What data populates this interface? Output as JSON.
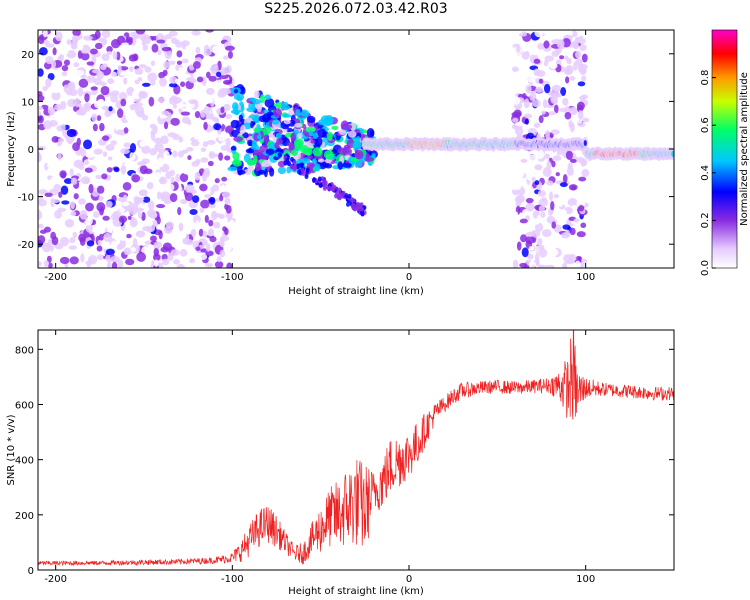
{
  "page_title": "S225.2026.072.03.42.R03",
  "chart_data": [
    {
      "type": "heatmap",
      "title": "S225.2026.072.03.42.R03",
      "xlabel": "Height of straight line (km)",
      "ylabel": "Frequency (Hz)",
      "xlim": [
        -210,
        150
      ],
      "ylim": [
        -25,
        25
      ],
      "xticks": [
        -200,
        -100,
        0,
        100
      ],
      "xtick_labels": [
        "-200",
        "-100",
        "0",
        "100"
      ],
      "yticks": [
        -20,
        -10,
        0,
        10,
        20
      ],
      "ytick_labels": [
        "-20",
        "-10",
        "0",
        "10",
        "20"
      ],
      "colorbar": {
        "label": "Normalized spectral amplitude",
        "range": [
          0,
          1
        ],
        "ticks": [
          0.0,
          0.2,
          0.4,
          0.6,
          0.8
        ],
        "tick_labels": [
          "0.0",
          "0.2",
          "0.4",
          "0.6",
          "0.8"
        ],
        "colors": [
          "#ffffff",
          "#e6ccff",
          "#8a2be2",
          "#0000ff",
          "#00c8ff",
          "#00ff66",
          "#c8ff00",
          "#ff9900",
          "#ff0000",
          "#ff00cc"
        ]
      },
      "description_series": [
        {
          "name": "carrier line",
          "x_range": [
            -25,
            150
          ],
          "frequency_hz": 1
        },
        {
          "name": "noise region left",
          "x_range": [
            -210,
            -100
          ],
          "frequency_range": [
            -25,
            25
          ]
        },
        {
          "name": "noise region right",
          "x_range": [
            60,
            100
          ],
          "frequency_range": [
            -25,
            25
          ]
        }
      ]
    },
    {
      "type": "line",
      "xlabel": "Height of straight line (km)",
      "ylabel": "SNR (10 * v/v)",
      "xlim": [
        -210,
        150
      ],
      "ylim": [
        0,
        870
      ],
      "xticks": [
        -200,
        -100,
        0,
        100
      ],
      "xtick_labels": [
        "-200",
        "-100",
        "0",
        "100"
      ],
      "yticks": [
        0,
        200,
        400,
        600,
        800
      ],
      "ytick_labels": [
        "0",
        "200",
        "400",
        "600",
        "800"
      ],
      "series": [
        {
          "name": "SNR",
          "color": "#ee2222",
          "x": [
            -210,
            -190,
            -170,
            -150,
            -130,
            -110,
            -100,
            -95,
            -90,
            -85,
            -80,
            -75,
            -70,
            -65,
            -60,
            -55,
            -50,
            -45,
            -40,
            -35,
            -30,
            -25,
            -22,
            -20,
            -15,
            -10,
            -5,
            0,
            5,
            10,
            15,
            20,
            25,
            30,
            40,
            50,
            60,
            70,
            80,
            85,
            90,
            93,
            95,
            100,
            110,
            120,
            130,
            140,
            150
          ],
          "y": [
            25,
            25,
            26,
            28,
            30,
            35,
            45,
            70,
            110,
            150,
            170,
            140,
            100,
            60,
            60,
            110,
            150,
            190,
            200,
            230,
            250,
            220,
            260,
            280,
            320,
            380,
            400,
            420,
            460,
            520,
            570,
            600,
            630,
            650,
            660,
            665,
            660,
            665,
            670,
            670,
            660,
            720,
            640,
            660,
            655,
            650,
            645,
            640,
            640
          ],
          "noise_amplitude": [
            8,
            8,
            8,
            10,
            10,
            12,
            20,
            40,
            60,
            70,
            70,
            60,
            40,
            30,
            40,
            60,
            90,
            110,
            130,
            150,
            170,
            170,
            120,
            80,
            100,
            110,
            100,
            90,
            80,
            60,
            40,
            30,
            30,
            30,
            25,
            25,
            25,
            25,
            30,
            60,
            120,
            200,
            100,
            40,
            25,
            25,
            25,
            25,
            25
          ]
        }
      ]
    }
  ]
}
